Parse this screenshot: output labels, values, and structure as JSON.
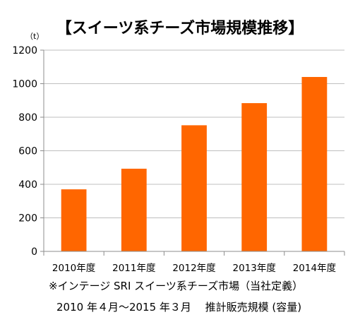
{
  "chart_data": {
    "type": "bar",
    "title": "【スイーツ系チーズ市場規模推移】",
    "ylabel": "（t）",
    "xlabel": "",
    "categories": [
      "2010年度",
      "2011年度",
      "2012年度",
      "2013年度",
      "2014年度"
    ],
    "values": [
      370,
      493,
      752,
      884,
      1040
    ],
    "ylim": [
      0,
      1200
    ],
    "yticks": [
      0,
      200,
      400,
      600,
      800,
      1000,
      1200
    ],
    "grid": true,
    "legend": "none",
    "bar_color": "#FF6600",
    "grid_color": "#BFBFBF",
    "axis_color": "#8C8C8C"
  },
  "notes": {
    "line1": "※インテージ SRI スイーツ系チーズ市場（当社定義）",
    "line2": "2010 年４月～2015 年３月　 推計販売規模 (容量)"
  }
}
